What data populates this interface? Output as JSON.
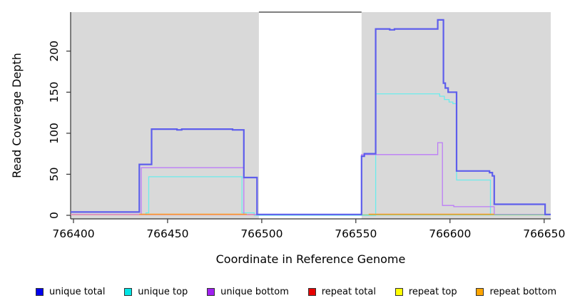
{
  "figure": {
    "y_axis": {
      "label": "Read Coverage Depth",
      "tick_labels": [
        "0",
        "50",
        "100",
        "150",
        "200"
      ]
    },
    "x_axis": {
      "label": "Coordinate in Reference Genome",
      "tick_labels": [
        "766400",
        "766450",
        "766500",
        "766550",
        "766600",
        "766650"
      ]
    },
    "legend": [
      {
        "label": "unique total",
        "color": "#0000EE"
      },
      {
        "label": "unique top",
        "color": "#00E5E5"
      },
      {
        "label": "unique bottom",
        "color": "#A020F0"
      },
      {
        "label": "repeat total",
        "color": "#E60000"
      },
      {
        "label": "repeat top",
        "color": "#FFFF00"
      },
      {
        "label": "repeat bottom",
        "color": "#FFA500"
      }
    ]
  },
  "chart_data": {
    "type": "line",
    "step": true,
    "title": "",
    "xlabel": "Coordinate in Reference Genome",
    "ylabel": "Read Coverage Depth",
    "xlim": [
      766398.5,
      766653.5
    ],
    "ylim": [
      0,
      247
    ],
    "x_ticks": [
      766400,
      766450,
      766500,
      766550,
      766600,
      766650
    ],
    "y_ticks": [
      0,
      50,
      100,
      150,
      200
    ],
    "grid": false,
    "legend_position": "bottom",
    "shade_color": "#D9D9D9",
    "shaded_regions": [
      [
        766398.5,
        766498.5
      ],
      [
        766553,
        766653.5
      ]
    ],
    "series": [
      {
        "name": "unique top",
        "render_color": "#6CECEC",
        "width": 1.3,
        "lines": [
          [
            [
              766438.5,
              0
            ],
            [
              766438.5,
              3
            ],
            [
              766440,
              3
            ],
            [
              766440,
              47
            ],
            [
              766489.5,
              47
            ],
            [
              766489.5,
              3
            ],
            [
              766496,
              3
            ],
            [
              766496,
              0
            ],
            [
              766560.5,
              0
            ],
            [
              766560.5,
              148
            ],
            [
              766594.5,
              148
            ],
            [
              766594.5,
              145
            ],
            [
              766597,
              145
            ],
            [
              766597,
              141
            ],
            [
              766599.5,
              141
            ],
            [
              766599.5,
              138
            ],
            [
              766601.5,
              138
            ],
            [
              766601.5,
              136
            ],
            [
              766603.5,
              136
            ],
            [
              766603.5,
              43
            ],
            [
              766621.5,
              43
            ],
            [
              766621.5,
              0
            ]
          ]
        ]
      },
      {
        "name": "unique bottom",
        "render_color": "#BC7CF7",
        "width": 1.3,
        "lines": [
          [
            [
              766398.5,
              1
            ],
            [
              766436,
              1
            ],
            [
              766436,
              58
            ],
            [
              766490.5,
              58
            ],
            [
              766490.5,
              1
            ],
            [
              766553,
              1
            ],
            [
              766553,
              74
            ],
            [
              766593.5,
              74
            ],
            [
              766593.5,
              88.5
            ],
            [
              766596,
              88.5
            ],
            [
              766596,
              12
            ],
            [
              766602,
              12
            ],
            [
              766602,
              10.5
            ],
            [
              766623.5,
              10.5
            ],
            [
              766623.5,
              1
            ],
            [
              766653.5,
              1
            ]
          ]
        ]
      },
      {
        "name": "repeat total",
        "render_color": "#E8879F",
        "width": 1.3,
        "lines": [
          [
            [
              766398.5,
              0.8
            ],
            [
              766496.5,
              0.8
            ]
          ]
        ]
      },
      {
        "name": "repeat top",
        "render_color": "#7FD290",
        "width": 1.3,
        "lines": [
          [
            [
              766553,
              0.5
            ],
            [
              766653.5,
              0.5
            ]
          ]
        ]
      },
      {
        "name": "repeat bottom",
        "render_color": "#FB9A28",
        "width": 1.6,
        "lines": [
          [
            [
              766435,
              1.3
            ],
            [
              766492,
              1.3
            ]
          ],
          [
            [
              766556.8,
              1.3
            ],
            [
              766623.5,
              1.3
            ]
          ]
        ]
      },
      {
        "name": "unique total",
        "render_color": "#5E5EEC",
        "width": 2.2,
        "lines": [
          [
            [
              766398.5,
              4
            ],
            [
              766435,
              4
            ],
            [
              766435,
              62
            ],
            [
              766441.5,
              62
            ],
            [
              766441.5,
              105
            ],
            [
              766455,
              105
            ],
            [
              766455,
              104
            ],
            [
              766457.5,
              104
            ],
            [
              766457.5,
              105
            ],
            [
              766484.5,
              105
            ],
            [
              766484.5,
              104
            ],
            [
              766490.5,
              104
            ],
            [
              766490.5,
              46
            ],
            [
              766497.5,
              46
            ],
            [
              766497.5,
              1
            ],
            [
              766553,
              1
            ],
            [
              766553,
              72
            ],
            [
              766554.5,
              72
            ],
            [
              766554.5,
              75
            ],
            [
              766560.5,
              75
            ],
            [
              766560.5,
              227
            ],
            [
              766568,
              227
            ],
            [
              766568,
              226
            ],
            [
              766570.5,
              226
            ],
            [
              766570.5,
              227
            ],
            [
              766593.5,
              227
            ],
            [
              766593.5,
              238
            ],
            [
              766596.5,
              238
            ],
            [
              766596.5,
              161
            ],
            [
              766597.5,
              161
            ],
            [
              766597.5,
              155
            ],
            [
              766599,
              155
            ],
            [
              766599,
              150
            ],
            [
              766603.5,
              150
            ],
            [
              766603.5,
              54
            ],
            [
              766621,
              54
            ],
            [
              766621,
              52
            ],
            [
              766622.5,
              52
            ],
            [
              766622.5,
              48
            ],
            [
              766623.5,
              48
            ],
            [
              766623.5,
              13.5
            ],
            [
              766650.5,
              13.5
            ],
            [
              766650.5,
              1
            ],
            [
              766653.5,
              1
            ]
          ]
        ]
      }
    ]
  }
}
